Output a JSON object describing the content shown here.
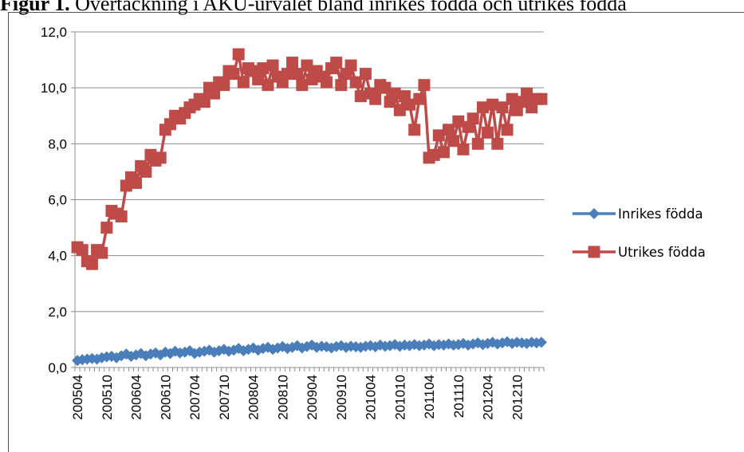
{
  "caption": {
    "label": "Figur 1.",
    "text": "Övertäckning i AKU-urvalet bland inrikes födda och utrikes födda"
  },
  "chart_data": {
    "type": "line",
    "title": "",
    "xlabel": "",
    "ylabel": "",
    "ylim": [
      0,
      12
    ],
    "yticks": [
      "0,0",
      "2,0",
      "4,0",
      "6,0",
      "8,0",
      "10,0",
      "12,0"
    ],
    "grid": "horizontal",
    "legend_position": "right",
    "xtick_labels": [
      "200504",
      "200510",
      "200604",
      "200610",
      "200704",
      "200710",
      "200804",
      "200810",
      "200904",
      "200910",
      "201004",
      "201010",
      "201104",
      "201110",
      "201204",
      "201210"
    ],
    "x": [
      "200504",
      "200505",
      "200506",
      "200507",
      "200508",
      "200509",
      "200510",
      "200511",
      "200512",
      "200601",
      "200602",
      "200603",
      "200604",
      "200605",
      "200606",
      "200607",
      "200608",
      "200609",
      "200610",
      "200611",
      "200612",
      "200701",
      "200702",
      "200703",
      "200704",
      "200705",
      "200706",
      "200707",
      "200708",
      "200709",
      "200710",
      "200711",
      "200712",
      "200801",
      "200802",
      "200803",
      "200804",
      "200805",
      "200806",
      "200807",
      "200808",
      "200809",
      "200810",
      "200811",
      "200812",
      "200901",
      "200902",
      "200903",
      "200904",
      "200905",
      "200906",
      "200907",
      "200908",
      "200909",
      "200910",
      "200911",
      "200912",
      "201001",
      "201002",
      "201003",
      "201004",
      "201005",
      "201006",
      "201007",
      "201008",
      "201009",
      "201010",
      "201011",
      "201012",
      "201101",
      "201102",
      "201103",
      "201104",
      "201105",
      "201106",
      "201107",
      "201108",
      "201109",
      "201110",
      "201111",
      "201112",
      "201201",
      "201202",
      "201203",
      "201204",
      "201205",
      "201206",
      "201207",
      "201208",
      "201209",
      "201210",
      "201211",
      "201212",
      "201301",
      "201302",
      "201303"
    ],
    "series": [
      {
        "name": "Inrikes födda",
        "color": "#4a7ebb",
        "marker": "diamond",
        "values": [
          0.25,
          0.28,
          0.3,
          0.32,
          0.3,
          0.35,
          0.38,
          0.4,
          0.35,
          0.42,
          0.48,
          0.4,
          0.45,
          0.5,
          0.42,
          0.48,
          0.52,
          0.45,
          0.55,
          0.5,
          0.58,
          0.52,
          0.55,
          0.6,
          0.5,
          0.55,
          0.58,
          0.62,
          0.55,
          0.6,
          0.65,
          0.58,
          0.62,
          0.68,
          0.6,
          0.65,
          0.7,
          0.62,
          0.68,
          0.72,
          0.65,
          0.7,
          0.75,
          0.68,
          0.72,
          0.78,
          0.7,
          0.75,
          0.8,
          0.72,
          0.76,
          0.74,
          0.7,
          0.75,
          0.78,
          0.72,
          0.76,
          0.74,
          0.72,
          0.76,
          0.78,
          0.74,
          0.8,
          0.76,
          0.78,
          0.82,
          0.76,
          0.8,
          0.78,
          0.82,
          0.78,
          0.8,
          0.84,
          0.78,
          0.82,
          0.8,
          0.84,
          0.8,
          0.82,
          0.86,
          0.8,
          0.84,
          0.88,
          0.82,
          0.86,
          0.9,
          0.84,
          0.88,
          0.92,
          0.86,
          0.9,
          0.88,
          0.86,
          0.9,
          0.88,
          0.9
        ]
      },
      {
        "name": "Utrikes födda",
        "color": "#be4b48",
        "marker": "square",
        "values": [
          4.3,
          4.2,
          3.8,
          3.7,
          4.2,
          4.1,
          5.0,
          5.6,
          5.5,
          5.4,
          6.5,
          6.8,
          6.6,
          7.2,
          7.0,
          7.6,
          7.4,
          7.5,
          8.5,
          8.7,
          9.0,
          8.9,
          9.1,
          9.3,
          9.4,
          9.6,
          9.5,
          10.0,
          9.8,
          10.2,
          10.1,
          10.6,
          10.5,
          11.2,
          10.2,
          10.7,
          10.6,
          10.3,
          10.7,
          10.1,
          10.8,
          10.4,
          10.2,
          10.5,
          10.9,
          10.5,
          10.1,
          10.8,
          10.3,
          10.6,
          10.4,
          10.2,
          10.7,
          10.9,
          10.1,
          10.5,
          10.8,
          10.2,
          9.7,
          10.5,
          9.8,
          9.6,
          10.1,
          10.0,
          9.5,
          9.8,
          9.2,
          9.7,
          9.4,
          8.5,
          9.6,
          10.1,
          7.5,
          7.6,
          8.3,
          7.7,
          8.5,
          8.1,
          8.8,
          7.8,
          8.6,
          8.9,
          8.0,
          9.3,
          8.4,
          9.4,
          8.0,
          9.3,
          8.5,
          9.6,
          9.2,
          9.5,
          9.8,
          9.3,
          9.6,
          9.6
        ]
      }
    ]
  }
}
